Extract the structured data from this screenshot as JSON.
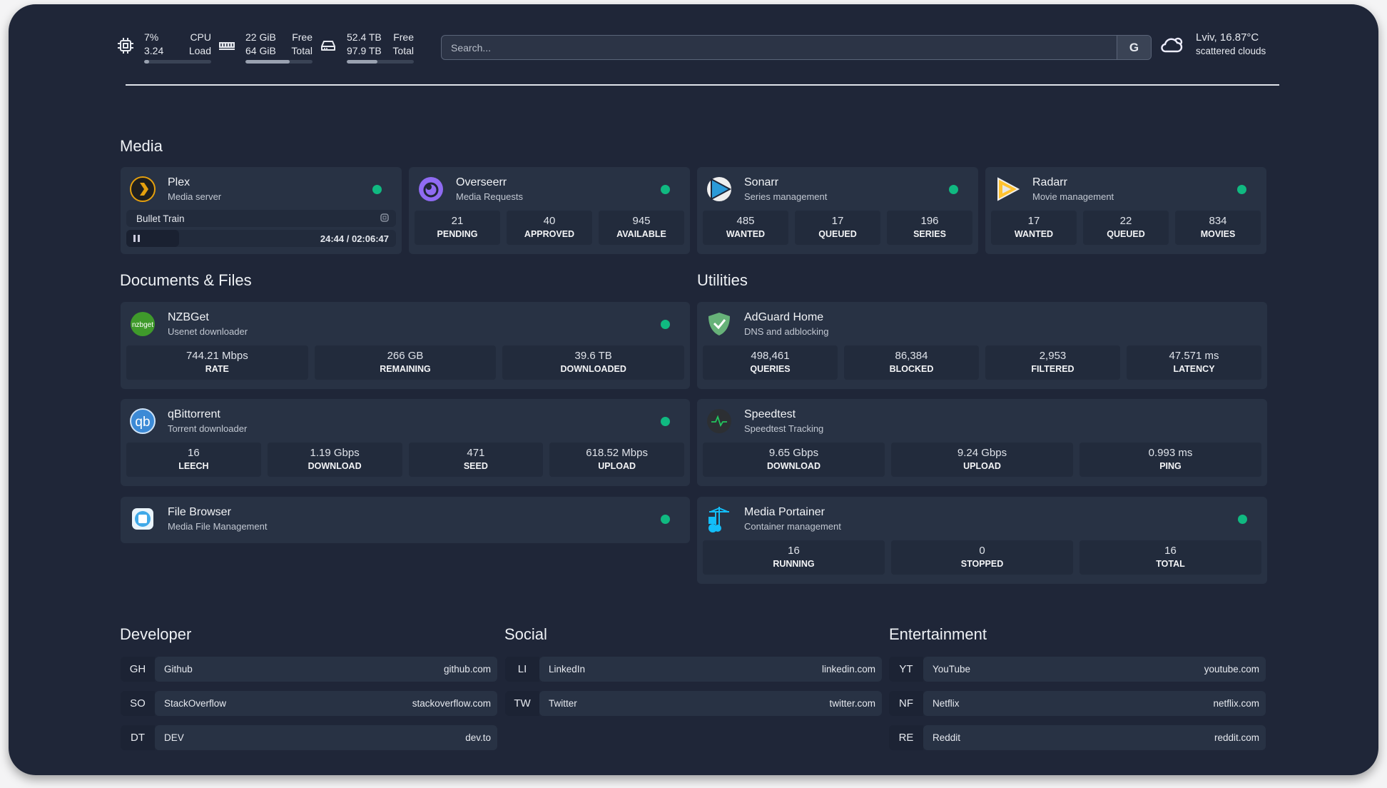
{
  "header": {
    "cpu": {
      "icon": "cpu-icon",
      "value1": "7%",
      "value2": "3.24",
      "label1": "CPU",
      "label2": "Load",
      "usage_fraction": 0.07
    },
    "memory": {
      "icon": "memory-icon",
      "value1": "22 GiB",
      "value2": "64 GiB",
      "label1": "Free",
      "label2": "Total",
      "usage_fraction": 0.66
    },
    "disk": {
      "icon": "disk-icon",
      "value1": "52.4 TB",
      "value2": "97.9 TB",
      "label1": "Free",
      "label2": "Total",
      "usage_fraction": 0.46
    },
    "search": {
      "placeholder": "Search...",
      "button": "G"
    },
    "weather": {
      "icon": "cloud-icon",
      "location_temp": "Lviv, 16.87°C",
      "condition": "scattered clouds"
    }
  },
  "sections": {
    "media": "Media",
    "documents": "Documents & Files",
    "utilities": "Utilities",
    "developer": "Developer",
    "social": "Social",
    "entertainment": "Entertainment"
  },
  "cards": [
    {
      "id": "plex",
      "icon": "plex-icon",
      "title": "Plex",
      "subtitle": "Media server",
      "status": "online",
      "now_playing": {
        "title": "Bullet Train",
        "time": "24:44 / 02:06:47",
        "progress": 0.195
      }
    },
    {
      "id": "overseerr",
      "icon": "overseerr-icon",
      "title": "Overseerr",
      "subtitle": "Media Requests",
      "status": "online",
      "stats": [
        {
          "value": "21",
          "label": "PENDING"
        },
        {
          "value": "40",
          "label": "APPROVED"
        },
        {
          "value": "945",
          "label": "AVAILABLE"
        }
      ]
    },
    {
      "id": "sonarr",
      "icon": "sonarr-icon",
      "title": "Sonarr",
      "subtitle": "Series management",
      "status": "online",
      "stats": [
        {
          "value": "485",
          "label": "WANTED"
        },
        {
          "value": "17",
          "label": "QUEUED"
        },
        {
          "value": "196",
          "label": "SERIES"
        }
      ]
    },
    {
      "id": "radarr",
      "icon": "radarr-icon",
      "title": "Radarr",
      "subtitle": "Movie management",
      "status": "online",
      "stats": [
        {
          "value": "17",
          "label": "WANTED"
        },
        {
          "value": "22",
          "label": "QUEUED"
        },
        {
          "value": "834",
          "label": "MOVIES"
        }
      ]
    },
    {
      "id": "nzbget",
      "icon": "nzbget-icon",
      "title": "NZBGet",
      "subtitle": "Usenet downloader",
      "status": "online",
      "stats": [
        {
          "value": "744.21 Mbps",
          "label": "RATE"
        },
        {
          "value": "266 GB",
          "label": "REMAINING"
        },
        {
          "value": "39.6 TB",
          "label": "DOWNLOADED"
        }
      ]
    },
    {
      "id": "qbittorrent",
      "icon": "qbittorrent-icon",
      "title": "qBittorrent",
      "subtitle": "Torrent downloader",
      "status": "online",
      "stats": [
        {
          "value": "16",
          "label": "LEECH"
        },
        {
          "value": "1.19 Gbps",
          "label": "DOWNLOAD"
        },
        {
          "value": "471",
          "label": "SEED"
        },
        {
          "value": "618.52 Mbps",
          "label": "UPLOAD"
        }
      ]
    },
    {
      "id": "filebrowser",
      "icon": "filebrowser-icon",
      "title": "File Browser",
      "subtitle": "Media File Management",
      "status": "online"
    },
    {
      "id": "adguard",
      "icon": "adguard-icon",
      "title": "AdGuard Home",
      "subtitle": "DNS and adblocking",
      "stats": [
        {
          "value": "498,461",
          "label": "QUERIES"
        },
        {
          "value": "86,384",
          "label": "BLOCKED"
        },
        {
          "value": "2,953",
          "label": "FILTERED"
        },
        {
          "value": "47.571 ms",
          "label": "LATENCY"
        }
      ]
    },
    {
      "id": "speedtest",
      "icon": "speedtest-icon",
      "title": "Speedtest",
      "subtitle": "Speedtest Tracking",
      "stats": [
        {
          "value": "9.65 Gbps",
          "label": "DOWNLOAD"
        },
        {
          "value": "9.24 Gbps",
          "label": "UPLOAD"
        },
        {
          "value": "0.993 ms",
          "label": "PING"
        }
      ]
    },
    {
      "id": "portainer",
      "icon": "portainer-icon",
      "title": "Media Portainer",
      "subtitle": "Container management",
      "status": "online",
      "stats": [
        {
          "value": "16",
          "label": "RUNNING"
        },
        {
          "value": "0",
          "label": "STOPPED"
        },
        {
          "value": "16",
          "label": "TOTAL"
        }
      ]
    }
  ],
  "bookmarks": [
    [
      {
        "abbr": "GH",
        "name": "Github",
        "url": "github.com"
      },
      {
        "abbr": "SO",
        "name": "StackOverflow",
        "url": "stackoverflow.com"
      },
      {
        "abbr": "DT",
        "name": "DEV",
        "url": "dev.to"
      }
    ],
    [
      {
        "abbr": "LI",
        "name": "LinkedIn",
        "url": "linkedin.com"
      },
      {
        "abbr": "TW",
        "name": "Twitter",
        "url": "twitter.com"
      }
    ],
    [
      {
        "abbr": "YT",
        "name": "YouTube",
        "url": "youtube.com"
      },
      {
        "abbr": "NF",
        "name": "Netflix",
        "url": "netflix.com"
      },
      {
        "abbr": "RE",
        "name": "Reddit",
        "url": "reddit.com"
      }
    ]
  ],
  "colors": {
    "background": "#1f2638",
    "card": "#283244",
    "status_online": "#10b981"
  }
}
